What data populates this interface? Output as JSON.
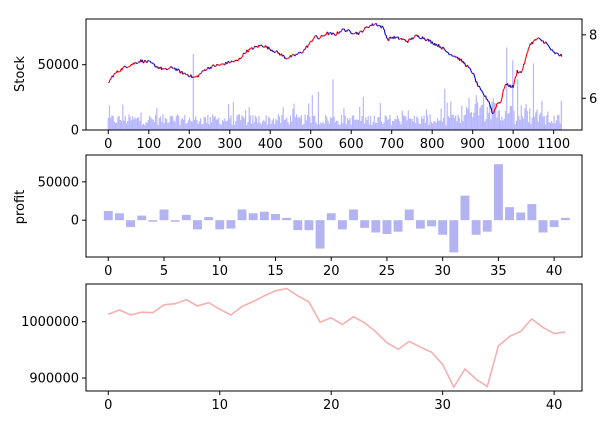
{
  "chart_data": [
    {
      "type": "bar+line",
      "title": "",
      "ylabel": "Stock",
      "ylabel_right": "",
      "xlim": [
        -55,
        1170
      ],
      "ylim": [
        0,
        85000
      ],
      "ylim_right": [
        5,
        8.5
      ],
      "xticks": [
        0,
        100,
        200,
        300,
        400,
        500,
        600,
        700,
        800,
        900,
        1000,
        1100
      ],
      "xtick_labels": [
        "0",
        "100",
        "200",
        "300",
        "400",
        "500",
        "600",
        "700",
        "800",
        "900",
        "1000",
        "1100"
      ],
      "yticks": [
        0,
        50000
      ],
      "ytick_labels": [
        "0",
        "50000"
      ],
      "yticks_right": [
        6,
        8
      ],
      "ytick_labels_right": [
        "6",
        "8"
      ],
      "grid": false,
      "series": [
        {
          "style": "line",
          "color_up": "#ff0000",
          "color_down": "#0000cc",
          "x": [
            0,
            10,
            20,
            40,
            60,
            80,
            100,
            120,
            140,
            160,
            180,
            200,
            210,
            220,
            240,
            260,
            280,
            300,
            320,
            340,
            360,
            380,
            400,
            420,
            440,
            460,
            480,
            500,
            510,
            520,
            540,
            560,
            580,
            600,
            620,
            640,
            660,
            680,
            690,
            700,
            720,
            740,
            760,
            780,
            800,
            820,
            840,
            860,
            880,
            900,
            910,
            920,
            930,
            940,
            950,
            960,
            970,
            980,
            1000,
            1010,
            1020,
            1030,
            1040,
            1060,
            1080,
            1100,
            1120
          ],
          "values": [
            36000,
            41000,
            44000,
            48000,
            50500,
            53000,
            52000,
            48500,
            46000,
            48000,
            44000,
            42000,
            40000,
            41000,
            46500,
            49000,
            50000,
            52000,
            53000,
            60000,
            63000,
            65000,
            62000,
            59000,
            55000,
            57000,
            60000,
            67000,
            72000,
            70000,
            74000,
            73000,
            77000,
            75000,
            74000,
            79000,
            81500,
            78000,
            69000,
            71000,
            70000,
            68000,
            72000,
            70500,
            67000,
            64000,
            59000,
            56000,
            51000,
            44000,
            36000,
            30000,
            26000,
            22000,
            12000,
            20000,
            22000,
            35000,
            33000,
            45000,
            44000,
            53000,
            65000,
            70000,
            67000,
            59000,
            57000
          ]
        },
        {
          "style": "bar",
          "color": "#aaaaff",
          "axis": "right",
          "peaks": [
            {
              "x": 210,
              "value": 7.4
            },
            {
              "x": 505,
              "value": 6.1
            },
            {
              "x": 520,
              "value": 6.2
            },
            {
              "x": 555,
              "value": 6.6
            },
            {
              "x": 830,
              "value": 6.3
            },
            {
              "x": 910,
              "value": 6.1
            },
            {
              "x": 950,
              "value": 6.0
            },
            {
              "x": 985,
              "value": 7.6
            },
            {
              "x": 1000,
              "value": 7.2
            },
            {
              "x": 1010,
              "value": 6.6
            },
            {
              "x": 1050,
              "value": 7.1
            }
          ]
        }
      ]
    },
    {
      "type": "bar",
      "title": "",
      "ylabel": "profit",
      "color": "#b3b3f2",
      "xlim": [
        -2,
        42.5
      ],
      "ylim": [
        -48000,
        85000
      ],
      "xticks": [
        0,
        5,
        10,
        15,
        20,
        25,
        30,
        35,
        40
      ],
      "xtick_labels": [
        "0",
        "5",
        "10",
        "15",
        "20",
        "25",
        "30",
        "35",
        "40"
      ],
      "yticks": [
        0,
        50000
      ],
      "ytick_labels": [
        "0",
        "50000"
      ],
      "grid": false,
      "x": [
        0,
        1,
        2,
        3,
        4,
        5,
        6,
        7,
        8,
        9,
        10,
        11,
        12,
        13,
        14,
        15,
        16,
        17,
        18,
        19,
        20,
        21,
        22,
        23,
        24,
        25,
        26,
        27,
        28,
        29,
        30,
        31,
        32,
        33,
        34,
        35,
        36,
        37,
        38,
        39,
        40,
        41
      ],
      "values": [
        12000,
        9000,
        -9000,
        6000,
        -2000,
        14000,
        -2000,
        7000,
        -12000,
        4000,
        -12000,
        -11000,
        14000,
        9000,
        11000,
        8000,
        3000,
        -13000,
        -13000,
        -37000,
        9000,
        -12000,
        14000,
        -10000,
        -16000,
        -18000,
        -15000,
        14000,
        -11000,
        -8000,
        -19000,
        -42000,
        32000,
        -19000,
        -15000,
        73000,
        17000,
        10000,
        21000,
        -16000,
        -9000,
        3000
      ]
    },
    {
      "type": "line",
      "title": "",
      "ylabel": "",
      "color": "#f5b0b0",
      "xlim": [
        -2,
        42.5
      ],
      "ylim": [
        877000,
        1067000
      ],
      "xticks": [
        0,
        10,
        20,
        30,
        40
      ],
      "xtick_labels": [
        "0",
        "10",
        "20",
        "30",
        "40"
      ],
      "yticks": [
        900000,
        1000000
      ],
      "ytick_labels": [
        "900000",
        "1000000"
      ],
      "grid": false,
      "x": [
        0,
        1,
        2,
        3,
        4,
        5,
        6,
        7,
        8,
        9,
        10,
        11,
        12,
        13,
        14,
        15,
        16,
        17,
        18,
        19,
        20,
        21,
        22,
        23,
        24,
        25,
        26,
        27,
        28,
        29,
        30,
        31,
        32,
        33,
        34,
        35,
        36,
        37,
        38,
        39,
        40,
        41
      ],
      "values": [
        1013000,
        1021000,
        1012000,
        1017000,
        1016000,
        1030000,
        1032000,
        1039000,
        1028000,
        1034000,
        1022000,
        1012000,
        1027000,
        1036000,
        1046000,
        1055000,
        1059000,
        1046000,
        1035000,
        999000,
        1007000,
        995000,
        1009000,
        998000,
        982000,
        963000,
        951000,
        965000,
        955000,
        946000,
        924000,
        884000,
        916000,
        898000,
        885000,
        957000,
        974000,
        983000,
        1005000,
        990000,
        979000,
        982000
      ]
    }
  ]
}
